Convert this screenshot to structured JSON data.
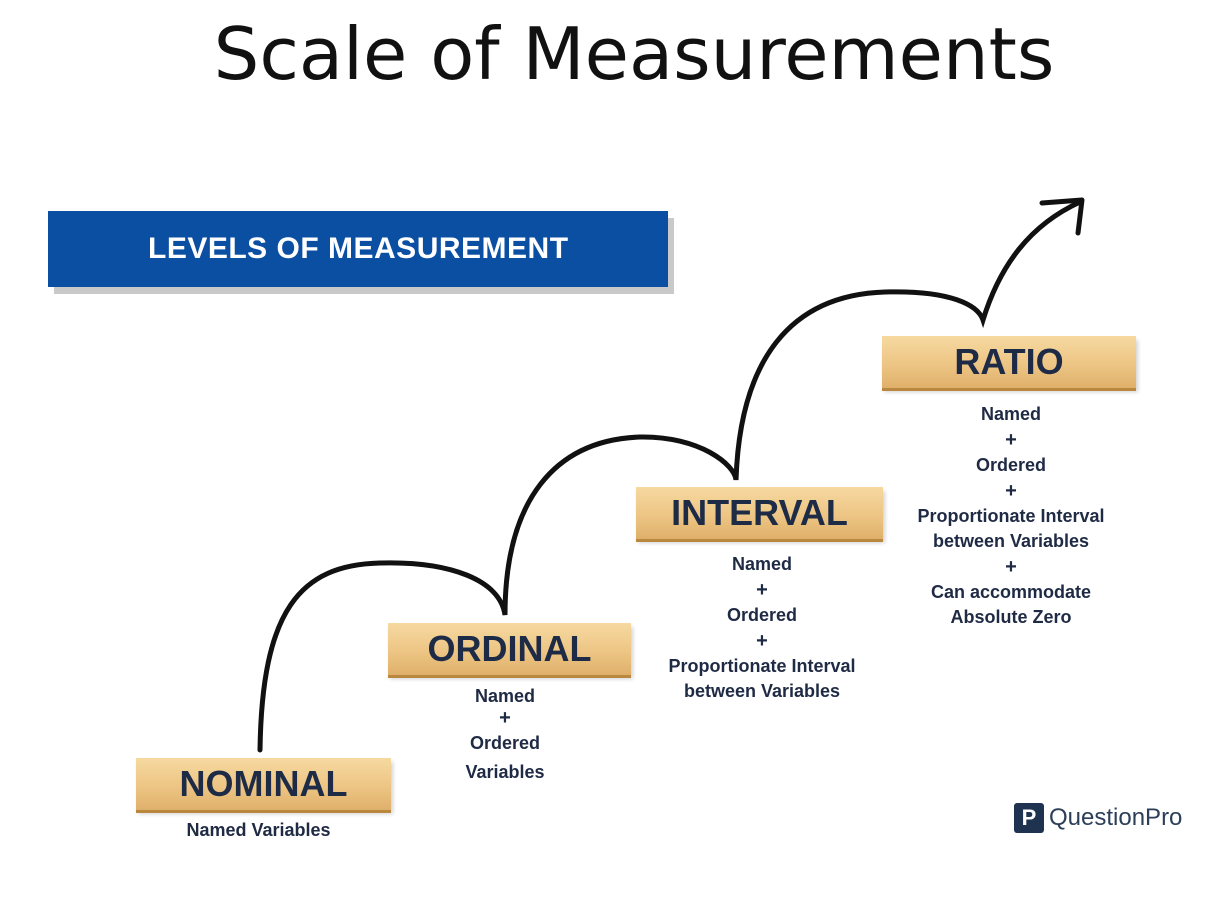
{
  "title": "Scale of Measurements",
  "banner": {
    "label": "LEVELS OF MEASUREMENT"
  },
  "levels": [
    {
      "name": "NOMINAL",
      "lines": [
        "Named Variables"
      ]
    },
    {
      "name": "ORDINAL",
      "lines": [
        "Named",
        "+",
        "Ordered",
        "Variables"
      ]
    },
    {
      "name": "INTERVAL",
      "lines": [
        "Named",
        "+",
        "Ordered",
        "+",
        "Proportionate Interval",
        "between Variables"
      ]
    },
    {
      "name": "RATIO",
      "lines": [
        "Named",
        "+",
        "Ordered",
        "+",
        "Proportionate Interval",
        "between Variables",
        "+",
        "Can accommodate",
        "Absolute Zero"
      ]
    }
  ],
  "logo": {
    "mark": "P",
    "text": "QuestionPro"
  },
  "colors": {
    "banner": "#0b4fa3",
    "block": "#edc584",
    "text": "#1f2a44"
  }
}
